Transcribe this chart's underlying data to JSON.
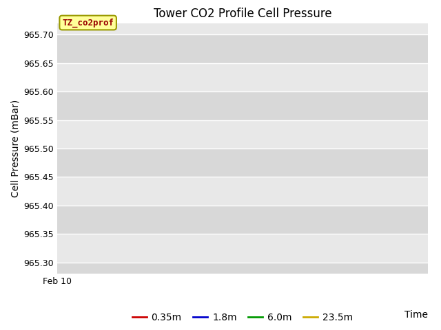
{
  "title": "Tower CO2 Profile Cell Pressure",
  "ylabel": "Cell Pressure (mBar)",
  "xlabel": "Time",
  "ylim": [
    965.28,
    965.72
  ],
  "yticks": [
    965.3,
    965.35,
    965.4,
    965.45,
    965.5,
    965.55,
    965.6,
    965.65,
    965.7
  ],
  "x_tick_label": "Feb 10",
  "annotation_text": "TZ_co2prof",
  "bg_color_light": "#dcdcdc",
  "bg_color_dark": "#c8c8c8",
  "bg_white": "#ffffff",
  "legend_entries": [
    {
      "label": "0.35m",
      "color": "#cc0000"
    },
    {
      "label": "1.8m",
      "color": "#0000cc"
    },
    {
      "label": "6.0m",
      "color": "#009900"
    },
    {
      "label": "23.5m",
      "color": "#ccaa00"
    }
  ],
  "title_fontsize": 12,
  "axis_fontsize": 10,
  "tick_fontsize": 9,
  "legend_fontsize": 10,
  "band_colors": [
    "#d8d8d8",
    "#e8e8e8"
  ]
}
